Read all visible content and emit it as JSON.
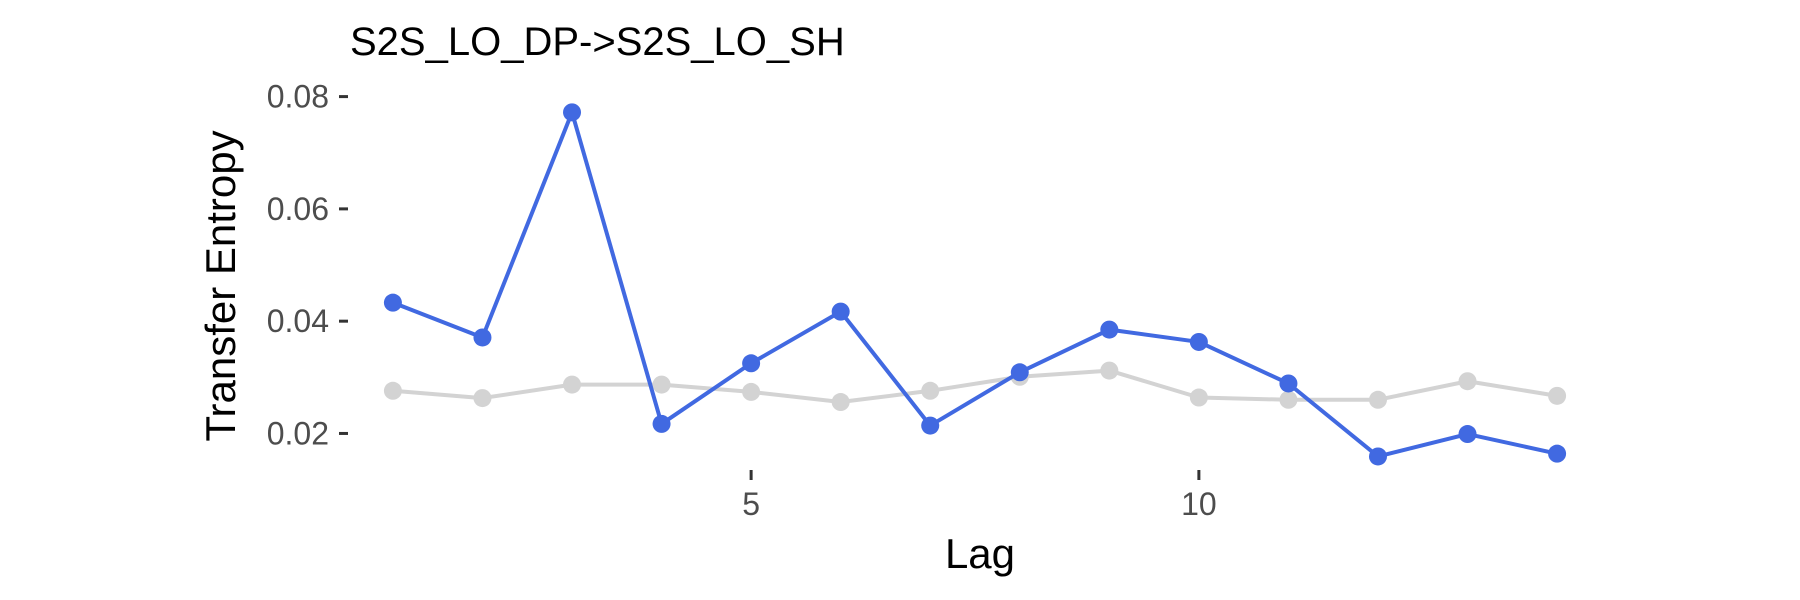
{
  "chart_data": {
    "type": "line",
    "title": "S2S_LO_DP->S2S_LO_SH",
    "xlabel": "Lag",
    "ylabel": "Transfer Entropy",
    "x": [
      1,
      2,
      3,
      4,
      5,
      6,
      7,
      8,
      9,
      10,
      11,
      12,
      13,
      14
    ],
    "xlim": [
      0.8,
      14.2
    ],
    "ylim": [
      0.0126,
      0.0826
    ],
    "x_ticks": [
      5,
      10
    ],
    "x_tick_labels": [
      "5",
      "10"
    ],
    "y_ticks": [
      0.02,
      0.04,
      0.06,
      0.08
    ],
    "y_tick_labels": [
      "0.02",
      "0.04",
      "0.06",
      "0.08"
    ],
    "grid": false,
    "legend": "none",
    "series": [
      {
        "color": "#d3d3d3",
        "values": [
          0.0276,
          0.0263,
          0.0287,
          0.0287,
          0.0274,
          0.0256,
          0.0276,
          0.0301,
          0.0312,
          0.0264,
          0.026,
          0.026,
          0.0293,
          0.0267
        ]
      },
      {
        "color": "#4169e1",
        "values": [
          0.0433,
          0.0371,
          0.0772,
          0.0217,
          0.0325,
          0.0417,
          0.0214,
          0.0309,
          0.0385,
          0.0363,
          0.0289,
          0.0159,
          0.0199,
          0.0164
        ]
      }
    ]
  }
}
